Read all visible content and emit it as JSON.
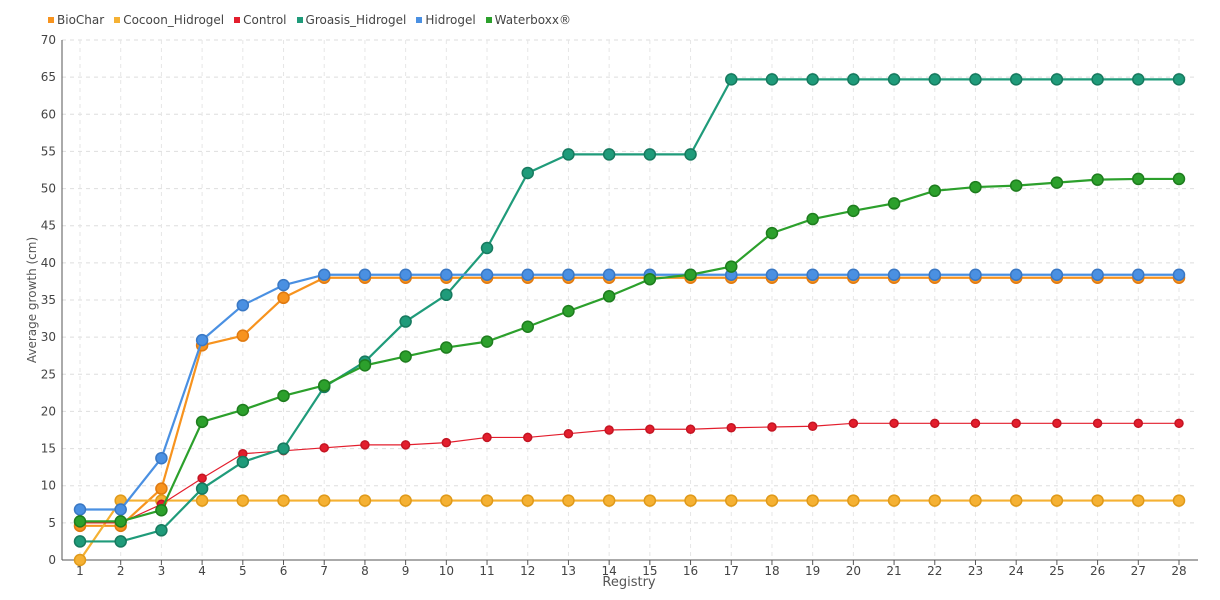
{
  "chart_data": {
    "type": "line",
    "xlabel": "Registry",
    "ylabel": "Average growth (cm)",
    "ylim": [
      0,
      70
    ],
    "yticks": [
      0,
      5,
      10,
      15,
      20,
      25,
      30,
      35,
      40,
      45,
      50,
      55,
      60,
      65,
      70
    ],
    "categories": [
      "1",
      "2",
      "3",
      "4",
      "5",
      "6",
      "7",
      "8",
      "9",
      "10",
      "11",
      "12",
      "13",
      "14",
      "15",
      "16",
      "17",
      "18",
      "19",
      "20",
      "21",
      "22",
      "23",
      "24",
      "25",
      "26",
      "27",
      "28"
    ],
    "grid": true,
    "legend_position": "top-left",
    "series": [
      {
        "name": "BioChar",
        "color": "#f7931e",
        "stroke": "#e07a10",
        "values": [
          4.6,
          4.6,
          9.6,
          28.9,
          30.2,
          35.3,
          38.0,
          38.0,
          38.0,
          38.0,
          38.0,
          38.0,
          38.0,
          38.0,
          38.0,
          38.0,
          38.0,
          38.0,
          38.0,
          38.0,
          38.0,
          38.0,
          38.0,
          38.0,
          38.0,
          38.0,
          38.0,
          38.0
        ]
      },
      {
        "name": "Cocoon_Hidrogel",
        "color": "#f5b133",
        "stroke": "#e09a1a",
        "values": [
          0.0,
          8.0,
          8.0,
          8.0,
          8.0,
          8.0,
          8.0,
          8.0,
          8.0,
          8.0,
          8.0,
          8.0,
          8.0,
          8.0,
          8.0,
          8.0,
          8.0,
          8.0,
          8.0,
          8.0,
          8.0,
          8.0,
          8.0,
          8.0,
          8.0,
          8.0,
          8.0,
          8.0
        ]
      },
      {
        "name": "Control",
        "color": "#e31e2d",
        "stroke": "#c41523",
        "small": true,
        "values": [
          5.0,
          5.0,
          7.5,
          11.0,
          14.3,
          14.7,
          15.1,
          15.5,
          15.5,
          15.8,
          16.5,
          16.5,
          17.0,
          17.5,
          17.6,
          17.6,
          17.8,
          17.9,
          18.0,
          18.4,
          18.4,
          18.4,
          18.4,
          18.4,
          18.4,
          18.4,
          18.4,
          18.4
        ]
      },
      {
        "name": "Groasis_Hidrogel",
        "color": "#1f9b7a",
        "stroke": "#177a5f",
        "values": [
          2.5,
          2.5,
          4.0,
          9.6,
          13.2,
          15.0,
          23.3,
          26.7,
          32.1,
          35.7,
          42.0,
          52.1,
          54.6,
          54.6,
          54.6,
          54.6,
          64.7,
          64.7,
          64.7,
          64.7,
          64.7,
          64.7,
          64.7,
          64.7,
          64.7,
          64.7,
          64.7,
          64.7
        ]
      },
      {
        "name": "Hidrogel",
        "color": "#4a90e2",
        "stroke": "#3a78c4",
        "values": [
          6.8,
          6.8,
          13.7,
          29.6,
          34.3,
          37.0,
          38.4,
          38.4,
          38.4,
          38.4,
          38.4,
          38.4,
          38.4,
          38.4,
          38.4,
          38.4,
          38.4,
          38.4,
          38.4,
          38.4,
          38.4,
          38.4,
          38.4,
          38.4,
          38.4,
          38.4,
          38.4,
          38.4
        ]
      },
      {
        "name": "Waterboxx®",
        "color": "#2ca02c",
        "stroke": "#1e7d1e",
        "values": [
          5.2,
          5.2,
          6.7,
          18.6,
          20.2,
          22.1,
          23.5,
          26.2,
          27.4,
          28.6,
          29.4,
          31.4,
          33.5,
          35.5,
          37.8,
          38.4,
          39.5,
          44.0,
          45.9,
          47.0,
          48.0,
          49.7,
          50.2,
          50.4,
          50.8,
          51.2,
          51.3,
          51.3
        ]
      }
    ]
  }
}
